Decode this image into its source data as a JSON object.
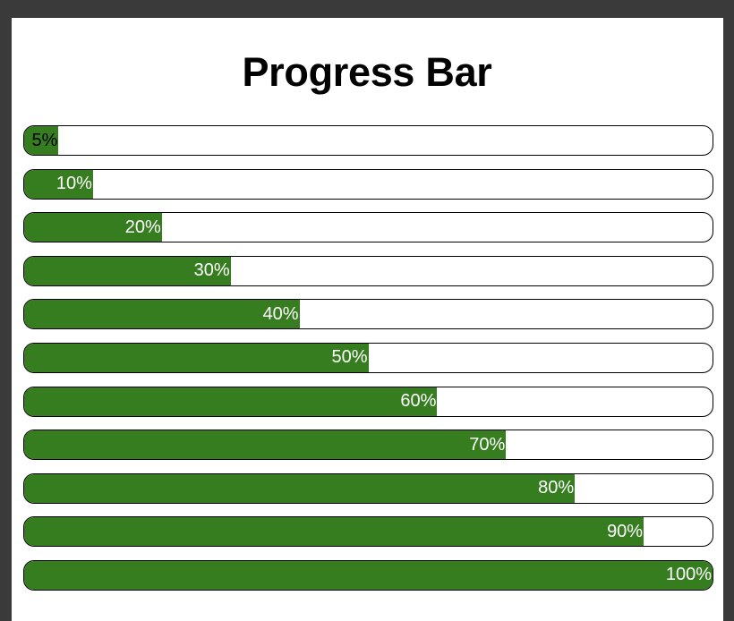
{
  "page": {
    "title": "Progress Bar"
  },
  "colors": {
    "fill": "#367d20",
    "track": "#ffffff",
    "border": "#000000",
    "frame_bg": "#3a3a3a"
  },
  "bars": [
    {
      "label": "5%",
      "value": 5
    },
    {
      "label": "10%",
      "value": 10
    },
    {
      "label": "20%",
      "value": 20
    },
    {
      "label": "30%",
      "value": 30
    },
    {
      "label": "40%",
      "value": 40
    },
    {
      "label": "50%",
      "value": 50
    },
    {
      "label": "60%",
      "value": 60
    },
    {
      "label": "70%",
      "value": 70
    },
    {
      "label": "80%",
      "value": 80
    },
    {
      "label": "90%",
      "value": 90
    },
    {
      "label": "100%",
      "value": 100
    }
  ]
}
